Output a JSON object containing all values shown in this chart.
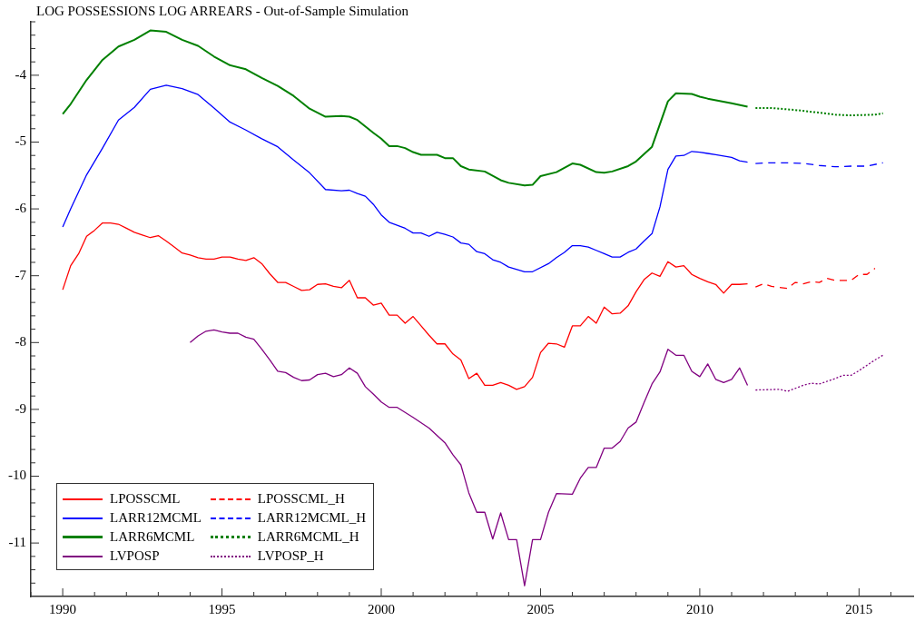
{
  "chart_data": {
    "type": "line",
    "title": "LOG POSSESSIONS LOG ARREARS - Out-of-Sample Simulation",
    "xlim": [
      1989,
      2016.7
    ],
    "ylim": [
      -11.8,
      -3.2
    ],
    "xticks": [
      {
        "value": 1989,
        "label": null
      },
      1990,
      {
        "value": 1991,
        "label": null
      },
      {
        "value": 1992,
        "label": null
      },
      {
        "value": 1993,
        "label": null
      },
      {
        "value": 1994,
        "label": null
      },
      1995,
      {
        "value": 1996,
        "label": null
      },
      {
        "value": 1997,
        "label": null
      },
      {
        "value": 1998,
        "label": null
      },
      {
        "value": 1999,
        "label": null
      },
      2000,
      {
        "value": 2001,
        "label": null
      },
      {
        "value": 2002,
        "label": null
      },
      {
        "value": 2003,
        "label": null
      },
      {
        "value": 2004,
        "label": null
      },
      2005,
      {
        "value": 2006,
        "label": null
      },
      {
        "value": 2007,
        "label": null
      },
      {
        "value": 2008,
        "label": null
      },
      {
        "value": 2009,
        "label": null
      },
      2010,
      {
        "value": 2011,
        "label": null
      },
      {
        "value": 2012,
        "label": null
      },
      {
        "value": 2013,
        "label": null
      },
      {
        "value": 2014,
        "label": null
      },
      2015,
      {
        "value": 2016,
        "label": null
      }
    ],
    "yticks": [
      {
        "value": -11.6,
        "label": null
      },
      {
        "value": -11.4,
        "label": null
      },
      {
        "value": -11.2,
        "label": null
      },
      -11,
      {
        "value": -10.8,
        "label": null
      },
      {
        "value": -10.6,
        "label": null
      },
      {
        "value": -10.4,
        "label": null
      },
      {
        "value": -10.2,
        "label": null
      },
      -10,
      {
        "value": -9.8,
        "label": null
      },
      {
        "value": -9.6,
        "label": null
      },
      {
        "value": -9.4,
        "label": null
      },
      {
        "value": -9.2,
        "label": null
      },
      -9,
      {
        "value": -8.8,
        "label": null
      },
      {
        "value": -8.6,
        "label": null
      },
      {
        "value": -8.4,
        "label": null
      },
      {
        "value": -8.2,
        "label": null
      },
      -8,
      {
        "value": -7.8,
        "label": null
      },
      {
        "value": -7.6,
        "label": null
      },
      {
        "value": -7.4,
        "label": null
      },
      {
        "value": -7.2,
        "label": null
      },
      -7,
      {
        "value": -6.8,
        "label": null
      },
      {
        "value": -6.6,
        "label": null
      },
      {
        "value": -6.4,
        "label": null
      },
      {
        "value": -6.2,
        "label": null
      },
      -6,
      {
        "value": -5.8,
        "label": null
      },
      {
        "value": -5.6,
        "label": null
      },
      {
        "value": -5.4,
        "label": null
      },
      {
        "value": -5.2,
        "label": null
      },
      -5,
      {
        "value": -4.8,
        "label": null
      },
      {
        "value": -4.6,
        "label": null
      },
      {
        "value": -4.4,
        "label": null
      },
      {
        "value": -4.2,
        "label": null
      },
      -4,
      {
        "value": -3.8,
        "label": null
      },
      {
        "value": -3.6,
        "label": null
      },
      {
        "value": -3.4,
        "label": null
      },
      {
        "value": -3.2,
        "label": null
      }
    ],
    "grid": false,
    "legend": "bottom left",
    "marker": "none",
    "series": [
      {
        "name": "LPOSSCML",
        "color": "#ff0000",
        "line_style": "solid",
        "x": [
          1990,
          1990.25,
          1990.5,
          1990.75,
          1991,
          1991.25,
          1991.5,
          1991.75,
          1992,
          1992.25,
          1992.5,
          1992.75,
          1993,
          1993.25,
          1993.5,
          1993.75,
          1994,
          1994.25,
          1994.5,
          1994.75,
          1995,
          1995.25,
          1995.5,
          1995.75,
          1996,
          1996.25,
          1996.5,
          1996.75,
          1997,
          1997.25,
          1997.5,
          1997.75,
          1998,
          1998.25,
          1998.5,
          1998.75,
          1999,
          1999.25,
          1999.5,
          1999.75,
          2000,
          2000.25,
          2000.5,
          2000.75,
          2001,
          2001.25,
          2001.5,
          2001.75,
          2002,
          2002.25,
          2002.5,
          2002.75,
          2003,
          2003.25,
          2003.5,
          2003.75,
          2004,
          2004.25,
          2004.5,
          2004.75,
          2005,
          2005.25,
          2005.5,
          2005.75,
          2006,
          2006.25,
          2006.5,
          2006.75,
          2007,
          2007.25,
          2007.5,
          2007.75,
          2008,
          2008.25,
          2008.5,
          2008.75,
          2009,
          2009.25,
          2009.5,
          2009.75,
          2010,
          2010.25,
          2010.5,
          2010.75,
          2011,
          2011.25,
          2011.5
        ],
        "values": [
          -7.21,
          -6.85,
          -6.67,
          -6.41,
          -6.32,
          -6.21,
          -6.21,
          -6.23,
          -6.29,
          -6.35,
          -6.39,
          -6.43,
          -6.4,
          -6.48,
          -6.57,
          -6.66,
          -6.69,
          -6.73,
          -6.75,
          -6.75,
          -6.72,
          -6.72,
          -6.75,
          -6.77,
          -6.73,
          -6.82,
          -6.97,
          -7.1,
          -7.1,
          -7.16,
          -7.22,
          -7.21,
          -7.13,
          -7.12,
          -7.16,
          -7.18,
          -7.07,
          -7.33,
          -7.33,
          -7.44,
          -7.41,
          -7.59,
          -7.59,
          -7.71,
          -7.61,
          -7.75,
          -7.89,
          -8.02,
          -8.02,
          -8.17,
          -8.26,
          -8.54,
          -8.46,
          -8.64,
          -8.64,
          -8.6,
          -8.64,
          -8.7,
          -8.66,
          -8.52,
          -8.15,
          -8.01,
          -8.02,
          -8.07,
          -7.75,
          -7.75,
          -7.61,
          -7.71,
          -7.47,
          -7.57,
          -7.56,
          -7.45,
          -7.24,
          -7.06,
          -6.96,
          -7.01,
          -6.79,
          -6.87,
          -6.85,
          -6.98,
          -7.04,
          -7.09,
          -7.13,
          -7.26,
          -7.13,
          -7.13,
          -7.12
        ]
      },
      {
        "name": "LARR12MCML",
        "color": "#0000ff",
        "line_style": "solid",
        "x": [
          1990,
          1990.25,
          1990.75,
          1991.25,
          1991.75,
          1992.25,
          1992.75,
          1993.25,
          1993.75,
          1994.25,
          1994.75,
          1995.25,
          1995.75,
          1996.25,
          1996.75,
          1997.25,
          1997.75,
          1998.25,
          1998.75,
          1999,
          1999.25,
          1999.5,
          1999.75,
          2000,
          2000.25,
          2000.75,
          2001,
          2001.25,
          2001.5,
          2001.75,
          2002,
          2002.25,
          2002.5,
          2002.75,
          2003,
          2003.25,
          2003.5,
          2003.75,
          2004,
          2004.5,
          2004.75,
          2005.25,
          2005.5,
          2005.75,
          2006,
          2006.25,
          2006.5,
          2006.75,
          2007,
          2007.25,
          2007.5,
          2007.75,
          2008,
          2008.25,
          2008.5,
          2008.75,
          2009,
          2009.25,
          2009.5,
          2009.75,
          2010,
          2010.25,
          2010.5,
          2011,
          2011.25,
          2011.5
        ],
        "values": [
          -6.27,
          -6.0,
          -5.49,
          -5.09,
          -4.67,
          -4.48,
          -4.21,
          -4.15,
          -4.2,
          -4.29,
          -4.49,
          -4.7,
          -4.82,
          -4.95,
          -5.07,
          -5.27,
          -5.46,
          -5.71,
          -5.73,
          -5.72,
          -5.77,
          -5.81,
          -5.93,
          -6.09,
          -6.2,
          -6.29,
          -6.36,
          -6.36,
          -6.41,
          -6.35,
          -6.38,
          -6.42,
          -6.51,
          -6.53,
          -6.64,
          -6.67,
          -6.76,
          -6.8,
          -6.87,
          -6.94,
          -6.94,
          -6.82,
          -6.73,
          -6.65,
          -6.55,
          -6.55,
          -6.57,
          -6.62,
          -6.67,
          -6.72,
          -6.72,
          -6.65,
          -6.6,
          -6.48,
          -6.37,
          -5.97,
          -5.41,
          -5.21,
          -5.2,
          -5.14,
          -5.15,
          -5.17,
          -5.19,
          -5.23,
          -5.28,
          -5.3
        ]
      },
      {
        "name": "LARR6MCML",
        "color": "#008000",
        "line_style": "solid",
        "x": [
          1990,
          1990.25,
          1990.75,
          1991.25,
          1991.75,
          1992.25,
          1992.75,
          1993.25,
          1993.75,
          1994.25,
          1994.75,
          1995.25,
          1995.75,
          1996.25,
          1996.75,
          1997.25,
          1997.75,
          1998.25,
          1998.75,
          1999,
          1999.25,
          1999.75,
          2000,
          2000.25,
          2000.5,
          2000.75,
          2001,
          2001.25,
          2001.5,
          2001.75,
          2002,
          2002.25,
          2002.5,
          2002.75,
          2003.25,
          2003.75,
          2004,
          2004.5,
          2004.75,
          2005,
          2005.5,
          2006,
          2006.25,
          2006.75,
          2007,
          2007.25,
          2007.75,
          2008,
          2008.5,
          2008.75,
          2009,
          2009.25,
          2009.75,
          2010,
          2010.25,
          2011,
          2011.5
        ],
        "values": [
          -4.58,
          -4.43,
          -4.07,
          -3.77,
          -3.57,
          -3.47,
          -3.33,
          -3.35,
          -3.47,
          -3.56,
          -3.72,
          -3.85,
          -3.91,
          -4.04,
          -4.16,
          -4.31,
          -4.5,
          -4.62,
          -4.61,
          -4.62,
          -4.67,
          -4.86,
          -4.95,
          -5.06,
          -5.06,
          -5.09,
          -5.15,
          -5.19,
          -5.19,
          -5.19,
          -5.24,
          -5.24,
          -5.36,
          -5.41,
          -5.44,
          -5.57,
          -5.61,
          -5.65,
          -5.64,
          -5.51,
          -5.45,
          -5.32,
          -5.34,
          -5.45,
          -5.46,
          -5.44,
          -5.36,
          -5.29,
          -5.07,
          -4.73,
          -4.39,
          -4.27,
          -4.28,
          -4.32,
          -4.35,
          -4.42,
          -4.47
        ]
      },
      {
        "name": "LVPOSP",
        "color": "#800080",
        "line_style": "solid",
        "x": [
          1994,
          1994.25,
          1994.5,
          1994.75,
          1995,
          1995.25,
          1995.5,
          1995.75,
          1996,
          1996.25,
          1996.5,
          1996.75,
          1997,
          1997.25,
          1997.5,
          1997.75,
          1998,
          1998.25,
          1998.5,
          1998.75,
          1999,
          1999.25,
          1999.5,
          1999.75,
          2000,
          2000.25,
          2000.5,
          2001,
          2001.5,
          2002,
          2002.25,
          2002.5,
          2002.75,
          2003,
          2003.25,
          2003.5,
          2003.75,
          2004,
          2004.25,
          2004.5,
          2004.75,
          2005,
          2005.25,
          2005.5,
          2006,
          2006.25,
          2006.5,
          2006.75,
          2007,
          2007.25,
          2007.5,
          2007.75,
          2008,
          2008.25,
          2008.5,
          2008.75,
          2009,
          2009.25,
          2009.5,
          2009.75,
          2010,
          2010.25,
          2010.5,
          2010.75,
          2011,
          2011.25,
          2011.5
        ],
        "values": [
          -8.0,
          -7.9,
          -7.83,
          -7.81,
          -7.84,
          -7.86,
          -7.86,
          -7.92,
          -7.95,
          -8.1,
          -8.26,
          -8.43,
          -8.45,
          -8.52,
          -8.57,
          -8.56,
          -8.48,
          -8.46,
          -8.51,
          -8.48,
          -8.38,
          -8.46,
          -8.66,
          -8.77,
          -8.89,
          -8.97,
          -8.97,
          -9.12,
          -9.28,
          -9.5,
          -9.68,
          -9.83,
          -10.25,
          -10.54,
          -10.54,
          -10.94,
          -10.55,
          -10.95,
          -10.95,
          -11.64,
          -10.95,
          -10.95,
          -10.54,
          -10.26,
          -10.27,
          -10.03,
          -9.87,
          -9.87,
          -9.58,
          -9.58,
          -9.48,
          -9.28,
          -9.19,
          -8.9,
          -8.62,
          -8.44,
          -8.1,
          -8.19,
          -8.19,
          -8.43,
          -8.51,
          -8.32,
          -8.55,
          -8.6,
          -8.55,
          -8.38,
          -8.64
        ]
      },
      {
        "name": "LPOSSCML_H",
        "color": "#ff0000",
        "line_style": "dashed",
        "x": [
          2011.75,
          2012,
          2012.25,
          2012.75,
          2013,
          2013.25,
          2013.5,
          2013.75,
          2014,
          2014.25,
          2014.75,
          2015,
          2015.25,
          2015.5
        ],
        "values": [
          -7.17,
          -7.12,
          -7.16,
          -7.19,
          -7.1,
          -7.12,
          -7.09,
          -7.1,
          -7.04,
          -7.07,
          -7.07,
          -6.98,
          -6.98,
          -6.89
        ]
      },
      {
        "name": "LARR12MCML_H",
        "color": "#0000ff",
        "line_style": "dashed",
        "x": [
          2011.75,
          2012.25,
          2012.75,
          2013.25,
          2013.75,
          2014.25,
          2014.75,
          2015.25,
          2015.75
        ],
        "values": [
          -5.32,
          -5.31,
          -5.31,
          -5.32,
          -5.35,
          -5.37,
          -5.36,
          -5.36,
          -5.31
        ]
      },
      {
        "name": "LARR6MCML_H",
        "color": "#008000",
        "line_style": "dotted",
        "x": [
          2011.75,
          2012.25,
          2013,
          2013.75,
          2014.25,
          2014.75,
          2015.5,
          2015.75
        ],
        "values": [
          -4.49,
          -4.49,
          -4.52,
          -4.56,
          -4.59,
          -4.6,
          -4.59,
          -4.57
        ]
      },
      {
        "name": "LVPOSP_H",
        "color": "#800080",
        "line_style": "dotted",
        "x": [
          2011.75,
          2012.5,
          2012.75,
          2013.25,
          2013.5,
          2013.75,
          2014.25,
          2014.5,
          2014.75,
          2015,
          2015.5,
          2015.75
        ],
        "values": [
          -8.71,
          -8.7,
          -8.73,
          -8.64,
          -8.61,
          -8.62,
          -8.54,
          -8.49,
          -8.49,
          -8.42,
          -8.26,
          -8.19
        ]
      }
    ]
  }
}
